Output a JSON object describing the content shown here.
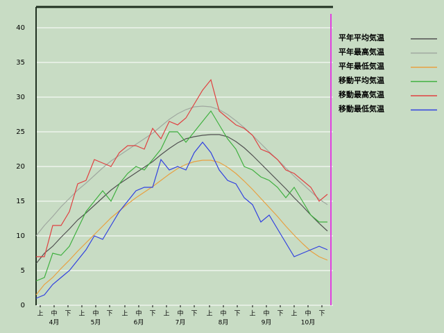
{
  "chart_data": {
    "type": "line",
    "x": [
      0,
      6,
      12,
      18,
      24,
      30,
      36,
      42,
      48,
      54,
      60,
      66,
      72,
      78,
      84,
      90,
      96,
      102,
      108,
      114,
      120,
      126,
      132,
      138,
      144,
      150,
      156,
      162,
      168,
      174,
      180,
      186,
      192,
      198,
      204,
      210
    ],
    "series": [
      {
        "name": "平年平均気温",
        "color": "#505050",
        "values": [
          6,
          7.5,
          8.5,
          9.8,
          11,
          12.3,
          13.3,
          14.4,
          15.5,
          16.6,
          17.5,
          18.3,
          19.1,
          19.9,
          20.7,
          21.7,
          22.6,
          23.4,
          24,
          24.3,
          24.5,
          24.6,
          24.6,
          24.3,
          23.6,
          22.7,
          21.6,
          20.4,
          19.2,
          18,
          16.8,
          15.5,
          14.3,
          13,
          11.8,
          10.7
        ]
      },
      {
        "name": "平年最高気温",
        "color": "#a0a8a0",
        "values": [
          10,
          11.5,
          12.8,
          14.2,
          15.4,
          16.6,
          17.6,
          18.7,
          19.8,
          20.8,
          21.6,
          22.4,
          23.2,
          24,
          24.8,
          25.8,
          26.8,
          27.6,
          28.2,
          28.6,
          28.7,
          28.6,
          28.2,
          27.5,
          26.6,
          25.6,
          24.5,
          23.3,
          22.1,
          21,
          19.8,
          18.6,
          17.5,
          16.4,
          15.3,
          14.5
        ]
      },
      {
        "name": "平年最低気温",
        "color": "#e8a040",
        "values": [
          1.5,
          3,
          4,
          5.3,
          6.5,
          7.8,
          9,
          10.2,
          11.4,
          12.6,
          13.6,
          14.6,
          15.5,
          16.3,
          17.1,
          18,
          18.9,
          19.7,
          20.3,
          20.7,
          20.9,
          20.9,
          20.6,
          19.9,
          19,
          17.9,
          16.7,
          15.4,
          14.1,
          12.8,
          11.4,
          10.1,
          8.9,
          7.8,
          7,
          6.5
        ]
      },
      {
        "name": "移動平均気温",
        "color": "#40b040",
        "values": [
          3.5,
          4,
          7.5,
          7.2,
          8.5,
          11,
          13.5,
          15,
          16.5,
          15,
          17.5,
          19,
          20,
          19.5,
          21,
          22.5,
          25,
          25,
          23.5,
          25,
          26.5,
          28,
          26,
          24,
          22.5,
          20,
          19.5,
          18.5,
          18,
          17,
          15.5,
          17,
          15,
          13,
          12,
          12
        ]
      },
      {
        "name": "移動最高気温",
        "color": "#e04040",
        "values": [
          7,
          7,
          11.5,
          11.5,
          13.5,
          17.5,
          18,
          21,
          20.5,
          20,
          22,
          23,
          23,
          22.5,
          25.5,
          24,
          26.5,
          26,
          27,
          29,
          31,
          32.5,
          28,
          27,
          26,
          25.5,
          24.5,
          22.5,
          22,
          21,
          19.5,
          19,
          18,
          17,
          15,
          16
        ]
      },
      {
        "name": "移動最低気温",
        "color": "#3040e0",
        "values": [
          1,
          1.5,
          3,
          4,
          5,
          6.5,
          8,
          10,
          9.5,
          11.5,
          13.5,
          15,
          16.5,
          17,
          17,
          21,
          19.5,
          20,
          19.5,
          22,
          23.5,
          22,
          19.5,
          18,
          17.5,
          15.5,
          14.5,
          12,
          13,
          11,
          9,
          7,
          7.5,
          8,
          8.5,
          8
        ]
      }
    ],
    "xlim": [
      0,
      214
    ],
    "ylim": [
      0,
      43
    ],
    "yticks": [
      0,
      5,
      10,
      15,
      20,
      25,
      30,
      35,
      40
    ],
    "grid": true,
    "xticks": [
      {
        "value": 3,
        "label": "上"
      },
      {
        "value": 13,
        "label": "中"
      },
      {
        "value": 23,
        "label": "下"
      },
      {
        "value": 33,
        "label": "上"
      },
      {
        "value": 43,
        "label": "中"
      },
      {
        "value": 53,
        "label": "下"
      },
      {
        "value": 64,
        "label": "上"
      },
      {
        "value": 74,
        "label": "中"
      },
      {
        "value": 84,
        "label": "下"
      },
      {
        "value": 94,
        "label": "上"
      },
      {
        "value": 104,
        "label": "中"
      },
      {
        "value": 114,
        "label": "下"
      },
      {
        "value": 125,
        "label": "上"
      },
      {
        "value": 135,
        "label": "中"
      },
      {
        "value": 145,
        "label": "下"
      },
      {
        "value": 156,
        "label": "上"
      },
      {
        "value": 166,
        "label": "中"
      },
      {
        "value": 176,
        "label": "下"
      },
      {
        "value": 186,
        "label": "上"
      },
      {
        "value": 196,
        "label": "中"
      },
      {
        "value": 206,
        "label": "下"
      }
    ],
    "month_labels": [
      {
        "value": 13,
        "label": "4月"
      },
      {
        "value": 43,
        "label": "5月"
      },
      {
        "value": 74,
        "label": "6月"
      },
      {
        "value": 104,
        "label": "7月"
      },
      {
        "value": 135,
        "label": "8月"
      },
      {
        "value": 166,
        "label": "9月"
      },
      {
        "value": 196,
        "label": "10月"
      }
    ],
    "marker_x": 212.5,
    "marker_color": "#e040e0"
  }
}
